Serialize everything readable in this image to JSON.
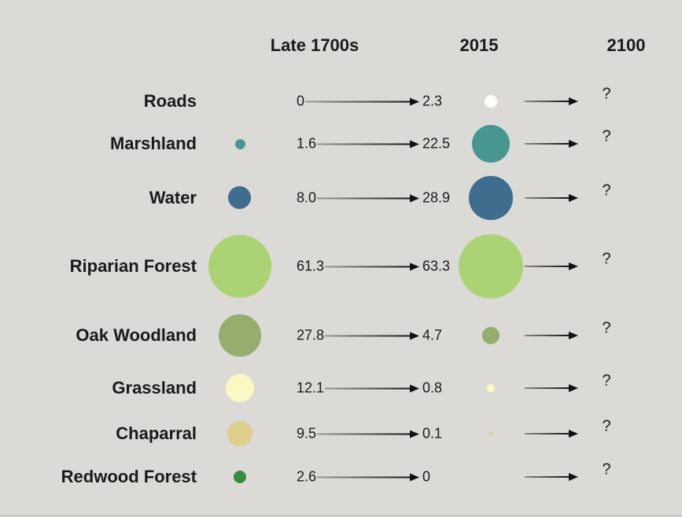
{
  "header": {
    "columns": [
      "Late 1700s",
      "2015",
      "2100"
    ]
  },
  "colors": {
    "background": "#dbdad6",
    "text": "#1a1a1a",
    "arrow": "#111111"
  },
  "chart_data": {
    "type": "bubble",
    "description_visible": false,
    "columns": [
      "Late 1700s",
      "2015",
      "2100"
    ],
    "bubble_scale": "area proportional to value",
    "rows": [
      {
        "label": "Roads",
        "color": "#ffffff",
        "late_1700s": 0,
        "y2015": 2.3,
        "y2100": "?",
        "late_label": "0",
        "y2015_label": "2.3"
      },
      {
        "label": "Marshland",
        "color": "#47968f",
        "late_1700s": 1.6,
        "y2015": 22.5,
        "y2100": "?",
        "late_label": "1.6",
        "y2015_label": "22.5"
      },
      {
        "label": "Water",
        "color": "#3e6d8d",
        "late_1700s": 8.0,
        "y2015": 28.9,
        "y2100": "?",
        "late_label": "8.0",
        "y2015_label": "28.9"
      },
      {
        "label": "Riparian Forest",
        "color": "#abd373",
        "late_1700s": 61.3,
        "y2015": 63.3,
        "y2100": "?",
        "late_label": "61.3",
        "y2015_label": "63.3"
      },
      {
        "label": "Oak Woodland",
        "color": "#95ad6d",
        "late_1700s": 27.8,
        "y2015": 4.7,
        "y2100": "?",
        "late_label": "27.8",
        "y2015_label": "4.7"
      },
      {
        "label": "Grassland",
        "color": "#fbf8c3",
        "late_1700s": 12.1,
        "y2015": 0.8,
        "y2100": "?",
        "late_label": "12.1",
        "y2015_label": "0.8"
      },
      {
        "label": "Chaparral",
        "color": "#dcd08c",
        "late_1700s": 9.5,
        "y2015": 0.1,
        "y2100": "?",
        "late_label": "9.5",
        "y2015_label": "0.1"
      },
      {
        "label": "Redwood Forest",
        "color": "#3b8a41",
        "late_1700s": 2.6,
        "y2015": 0,
        "y2100": "?",
        "late_label": "2.6",
        "y2015_label": "0"
      }
    ]
  }
}
